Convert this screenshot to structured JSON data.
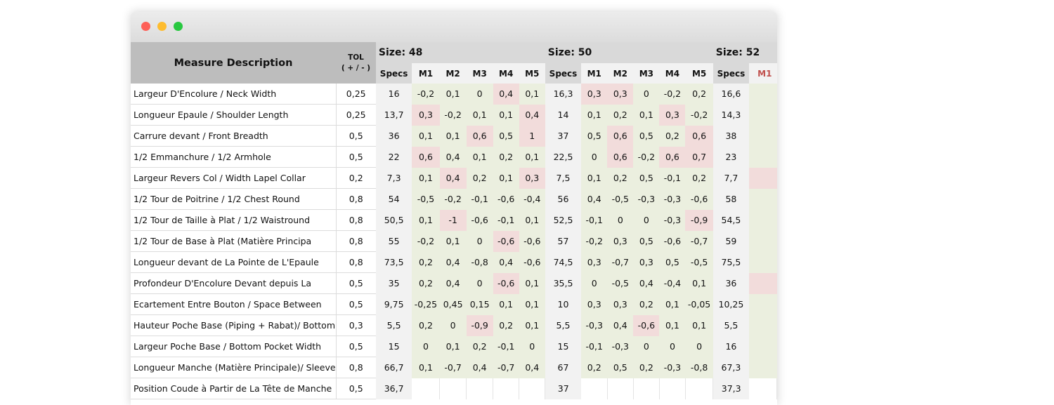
{
  "window": {
    "controls": {
      "close_color": "#fe5f57",
      "minimize_color": "#febc2e",
      "zoom_color": "#28c840"
    }
  },
  "colors": {
    "within_tolerance": "#ebefdf",
    "out_of_tolerance": "#f2dcdb",
    "specs_bg": "#f2f2f2",
    "header_bg": "#bdbdbd"
  },
  "header": {
    "description": "Measure Description",
    "tol": "TOL",
    "tol_sub": "( + / - )",
    "specs_label": "Specs",
    "measure_labels": [
      "M1",
      "M2",
      "M3",
      "M4",
      "M5"
    ]
  },
  "sizes": [
    {
      "label": "Size: 48"
    },
    {
      "label": "Size: 50"
    },
    {
      "label": "Size: 52"
    }
  ],
  "rows": [
    {
      "desc": "Largeur D'Encolure / Neck Width",
      "tol": "0,25",
      "s48": {
        "spec": "16",
        "m": [
          "-0,2",
          "0,1",
          "0",
          "0,4",
          "0,1"
        ],
        "out": [
          4
        ]
      },
      "s50": {
        "spec": "16,3",
        "m": [
          "0,3",
          "0,3",
          "0",
          "-0,2",
          "0,2"
        ],
        "out": [
          1,
          2
        ]
      },
      "s52": {
        "spec": "16,6",
        "out_m1": false
      }
    },
    {
      "desc": "Longueur Epaule / Shoulder Length",
      "tol": "0,25",
      "s48": {
        "spec": "13,7",
        "m": [
          "0,3",
          "-0,2",
          "0,1",
          "0,1",
          "0,4"
        ],
        "out": [
          1,
          5
        ]
      },
      "s50": {
        "spec": "14",
        "m": [
          "0,1",
          "0,2",
          "0,1",
          "0,3",
          "-0,2"
        ],
        "out": [
          4
        ]
      },
      "s52": {
        "spec": "14,3",
        "out_m1": false
      }
    },
    {
      "desc": "Carrure devant / Front Breadth",
      "tol": "0,5",
      "s48": {
        "spec": "36",
        "m": [
          "0,1",
          "0,1",
          "0,6",
          "0,5",
          "1"
        ],
        "out": [
          3,
          5
        ]
      },
      "s50": {
        "spec": "37",
        "m": [
          "0,5",
          "0,6",
          "0,5",
          "0,2",
          "0,6"
        ],
        "out": [
          2,
          5
        ]
      },
      "s52": {
        "spec": "38",
        "out_m1": false
      }
    },
    {
      "desc": "1/2 Emmanchure / 1/2 Armhole",
      "tol": "0,5",
      "s48": {
        "spec": "22",
        "m": [
          "0,6",
          "0,4",
          "0,1",
          "0,2",
          "0,1"
        ],
        "out": [
          1
        ]
      },
      "s50": {
        "spec": "22,5",
        "m": [
          "0",
          "0,6",
          "-0,2",
          "0,6",
          "0,7"
        ],
        "out": [
          2,
          4,
          5
        ]
      },
      "s52": {
        "spec": "23",
        "out_m1": false
      }
    },
    {
      "desc": "Largeur Revers Col / Width Lapel Collar",
      "tol": "0,2",
      "s48": {
        "spec": "7,3",
        "m": [
          "0,1",
          "0,4",
          "0,2",
          "0,1",
          "0,3"
        ],
        "out": [
          2,
          5
        ]
      },
      "s50": {
        "spec": "7,5",
        "m": [
          "0,1",
          "0,2",
          "0,5",
          "-0,1",
          "0,2"
        ],
        "out": []
      },
      "s52": {
        "spec": "7,7",
        "out_m1": true
      }
    },
    {
      "desc": "1/2 Tour de Poitrine / 1/2 Chest Round",
      "tol": "0,8",
      "s48": {
        "spec": "54",
        "m": [
          "-0,5",
          "-0,2",
          "-0,1",
          "-0,6",
          "-0,4"
        ],
        "out": []
      },
      "s50": {
        "spec": "56",
        "m": [
          "0,4",
          "-0,5",
          "-0,3",
          "-0,3",
          "-0,6"
        ],
        "out": []
      },
      "s52": {
        "spec": "58",
        "out_m1": false
      }
    },
    {
      "desc": "1/2 Tour de Taille à Plat / 1/2 Waistround",
      "tol": "0,8",
      "s48": {
        "spec": "50,5",
        "m": [
          "0,1",
          "-1",
          "-0,6",
          "-0,1",
          "0,1"
        ],
        "out": [
          2
        ]
      },
      "s50": {
        "spec": "52,5",
        "m": [
          "-0,1",
          "0",
          "0",
          "-0,3",
          "-0,9"
        ],
        "out": [
          5
        ]
      },
      "s52": {
        "spec": "54,5",
        "out_m1": false
      }
    },
    {
      "desc": "1/2 Tour de Base à Plat (Matière Principa",
      "tol": "0,8",
      "s48": {
        "spec": "55",
        "m": [
          "-0,2",
          "0,1",
          "0",
          "-0,6",
          "-0,6"
        ],
        "out": [
          4
        ]
      },
      "s50": {
        "spec": "57",
        "m": [
          "-0,2",
          "0,3",
          "0,5",
          "-0,6",
          "-0,7"
        ],
        "out": []
      },
      "s52": {
        "spec": "59",
        "out_m1": false
      }
    },
    {
      "desc": "Longueur devant de La Pointe de L'Epaule",
      "tol": "0,8",
      "s48": {
        "spec": "73,5",
        "m": [
          "0,2",
          "0,4",
          "-0,8",
          "0,4",
          "-0,6"
        ],
        "out": []
      },
      "s50": {
        "spec": "74,5",
        "m": [
          "0,3",
          "-0,7",
          "0,3",
          "0,5",
          "-0,5"
        ],
        "out": []
      },
      "s52": {
        "spec": "75,5",
        "out_m1": false
      }
    },
    {
      "desc": "Profondeur D'Encolure Devant depuis La",
      "tol": "0,5",
      "s48": {
        "spec": "35",
        "m": [
          "0,2",
          "0,4",
          "0",
          "-0,6",
          "0,1"
        ],
        "out": [
          4
        ]
      },
      "s50": {
        "spec": "35,5",
        "m": [
          "0",
          "-0,5",
          "0,4",
          "-0,4",
          "0,1"
        ],
        "out": []
      },
      "s52": {
        "spec": "36",
        "out_m1": true
      }
    },
    {
      "desc": "Ecartement Entre Bouton / Space Between",
      "tol": "0,5",
      "s48": {
        "spec": "9,75",
        "m": [
          "-0,25",
          "0,45",
          "0,15",
          "0,1",
          "0,1"
        ],
        "out": []
      },
      "s50": {
        "spec": "10",
        "m": [
          "0,3",
          "0,3",
          "0,2",
          "0,1",
          "-0,05"
        ],
        "out": []
      },
      "s52": {
        "spec": "10,25",
        "out_m1": false
      }
    },
    {
      "desc": "Hauteur Poche Base (Piping + Rabat)/ Bottom",
      "tol": "0,3",
      "s48": {
        "spec": "5,5",
        "m": [
          "0,2",
          "0",
          "-0,9",
          "0,2",
          "0,1"
        ],
        "out": [
          3
        ]
      },
      "s50": {
        "spec": "5,5",
        "m": [
          "-0,3",
          "0,4",
          "-0,6",
          "0,1",
          "0,1"
        ],
        "out": [
          3
        ]
      },
      "s52": {
        "spec": "5,5",
        "out_m1": false
      }
    },
    {
      "desc": "Largeur Poche Base / Bottom Pocket Width",
      "tol": "0,5",
      "s48": {
        "spec": "15",
        "m": [
          "0",
          "0,1",
          "0,2",
          "-0,1",
          "0"
        ],
        "out": []
      },
      "s50": {
        "spec": "15",
        "m": [
          "-0,1",
          "-0,3",
          "0",
          "0",
          "0"
        ],
        "out": []
      },
      "s52": {
        "spec": "16",
        "out_m1": false
      }
    },
    {
      "desc": "Longueur Manche (Matière Principale)/ Sleeve",
      "tol": "0,8",
      "s48": {
        "spec": "66,7",
        "m": [
          "0,1",
          "-0,7",
          "0,4",
          "-0,7",
          "0,4"
        ],
        "out": []
      },
      "s50": {
        "spec": "67",
        "m": [
          "0,2",
          "0,5",
          "0,2",
          "-0,3",
          "-0,8"
        ],
        "out": []
      },
      "s52": {
        "spec": "67,3",
        "out_m1": false
      }
    },
    {
      "desc": "Position Coude à Partir de La Tête de Manche",
      "tol": "0,5",
      "s48": {
        "spec": "36,7",
        "m": [
          "",
          "",
          "",
          "",
          ""
        ],
        "out": [],
        "empty": true
      },
      "s50": {
        "spec": "37",
        "m": [
          "",
          "",
          "",
          "",
          ""
        ],
        "out": [],
        "empty": true
      },
      "s52": {
        "spec": "37,3",
        "out_m1": false,
        "empty": true
      }
    }
  ]
}
